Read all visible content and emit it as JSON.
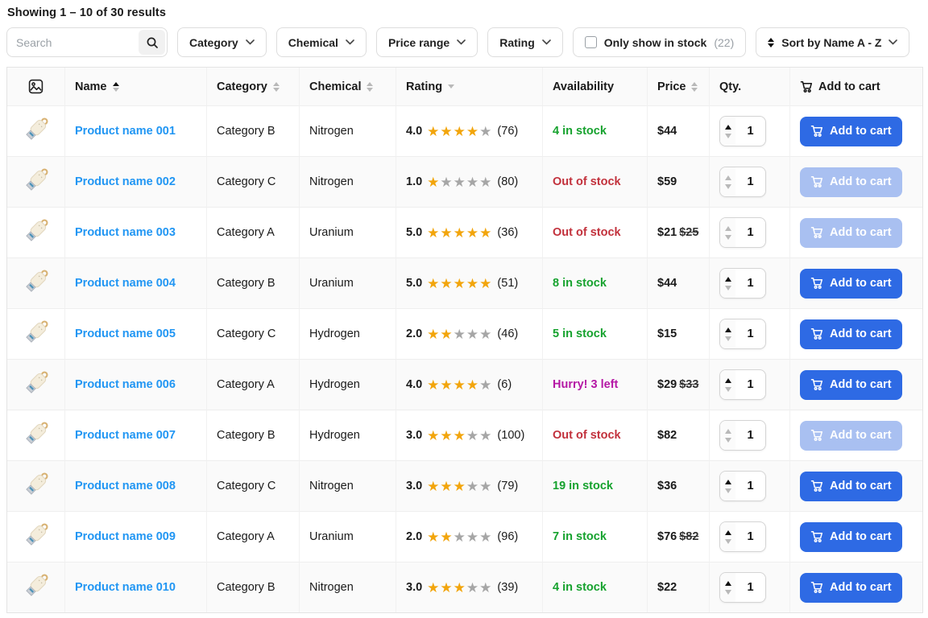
{
  "page": {
    "title": "Showing 1 – 10 of 30 results"
  },
  "toolbar": {
    "search_placeholder": "Search",
    "filters": [
      "Category",
      "Chemical",
      "Price range",
      "Rating"
    ],
    "stock_filter": {
      "label": "Only show in stock",
      "count": "(22)",
      "checked": false
    },
    "sort_label": "Sort by Name A - Z"
  },
  "table": {
    "headers": {
      "image": "image-placeholder",
      "name": "Name",
      "category": "Category",
      "chemical": "Chemical",
      "rating": "Rating",
      "availability": "Availability",
      "price": "Price",
      "qty": "Qty.",
      "cart": "Add to cart"
    },
    "sort_state": {
      "name": "asc",
      "category": "none",
      "chemical": "none",
      "rating": "desc-hint",
      "price": "none"
    },
    "add_to_cart_label": "Add to cart",
    "rows": [
      {
        "name": "Product name 001",
        "category": "Category B",
        "chemical": "Nitrogen",
        "rating": "4.0",
        "stars": 4,
        "reviews": "(76)",
        "availability": "4 in stock",
        "availability_type": "in",
        "price": "$44",
        "old_price": "",
        "qty": "1",
        "disabled": false
      },
      {
        "name": "Product name 002",
        "category": "Category C",
        "chemical": "Nitrogen",
        "rating": "1.0",
        "stars": 1,
        "reviews": "(80)",
        "availability": "Out of stock",
        "availability_type": "out",
        "price": "$59",
        "old_price": "",
        "qty": "1",
        "disabled": true
      },
      {
        "name": "Product name 003",
        "category": "Category A",
        "chemical": "Uranium",
        "rating": "5.0",
        "stars": 5,
        "reviews": "(36)",
        "availability": "Out of stock",
        "availability_type": "out",
        "price": "$21",
        "old_price": "$25",
        "qty": "1",
        "disabled": true
      },
      {
        "name": "Product name 004",
        "category": "Category B",
        "chemical": "Uranium",
        "rating": "5.0",
        "stars": 5,
        "reviews": "(51)",
        "availability": "8 in stock",
        "availability_type": "in",
        "price": "$44",
        "old_price": "",
        "qty": "1",
        "disabled": false
      },
      {
        "name": "Product name 005",
        "category": "Category C",
        "chemical": "Hydrogen",
        "rating": "2.0",
        "stars": 2,
        "reviews": "(46)",
        "availability": "5 in stock",
        "availability_type": "in",
        "price": "$15",
        "old_price": "",
        "qty": "1",
        "disabled": false
      },
      {
        "name": "Product name 006",
        "category": "Category A",
        "chemical": "Hydrogen",
        "rating": "4.0",
        "stars": 4,
        "reviews": "(6)",
        "availability": "Hurry! 3 left",
        "availability_type": "low",
        "price": "$29",
        "old_price": "$33",
        "qty": "1",
        "disabled": false
      },
      {
        "name": "Product name 007",
        "category": "Category B",
        "chemical": "Hydrogen",
        "rating": "3.0",
        "stars": 3,
        "reviews": "(100)",
        "availability": "Out of stock",
        "availability_type": "out",
        "price": "$82",
        "old_price": "",
        "qty": "1",
        "disabled": true
      },
      {
        "name": "Product name 008",
        "category": "Category C",
        "chemical": "Nitrogen",
        "rating": "3.0",
        "stars": 3,
        "reviews": "(79)",
        "availability": "19 in stock",
        "availability_type": "in",
        "price": "$36",
        "old_price": "",
        "qty": "1",
        "disabled": false
      },
      {
        "name": "Product name 009",
        "category": "Category A",
        "chemical": "Uranium",
        "rating": "2.0",
        "stars": 2,
        "reviews": "(96)",
        "availability": "7 in stock",
        "availability_type": "in",
        "price": "$76",
        "old_price": "$82",
        "qty": "1",
        "disabled": false
      },
      {
        "name": "Product name 010",
        "category": "Category B",
        "chemical": "Nitrogen",
        "rating": "3.0",
        "stars": 3,
        "reviews": "(39)",
        "availability": "4 in stock",
        "availability_type": "in",
        "price": "$22",
        "old_price": "",
        "qty": "1",
        "disabled": false
      }
    ]
  },
  "colors": {
    "link": "#2196f3",
    "in": "#16a22e",
    "out": "#c2313c",
    "low": "#b517a5",
    "accent": "#2e6ae4",
    "accent_disabled": "#a9c0f1",
    "star": "#f2a50c",
    "star_empty": "#a6a6a6"
  }
}
